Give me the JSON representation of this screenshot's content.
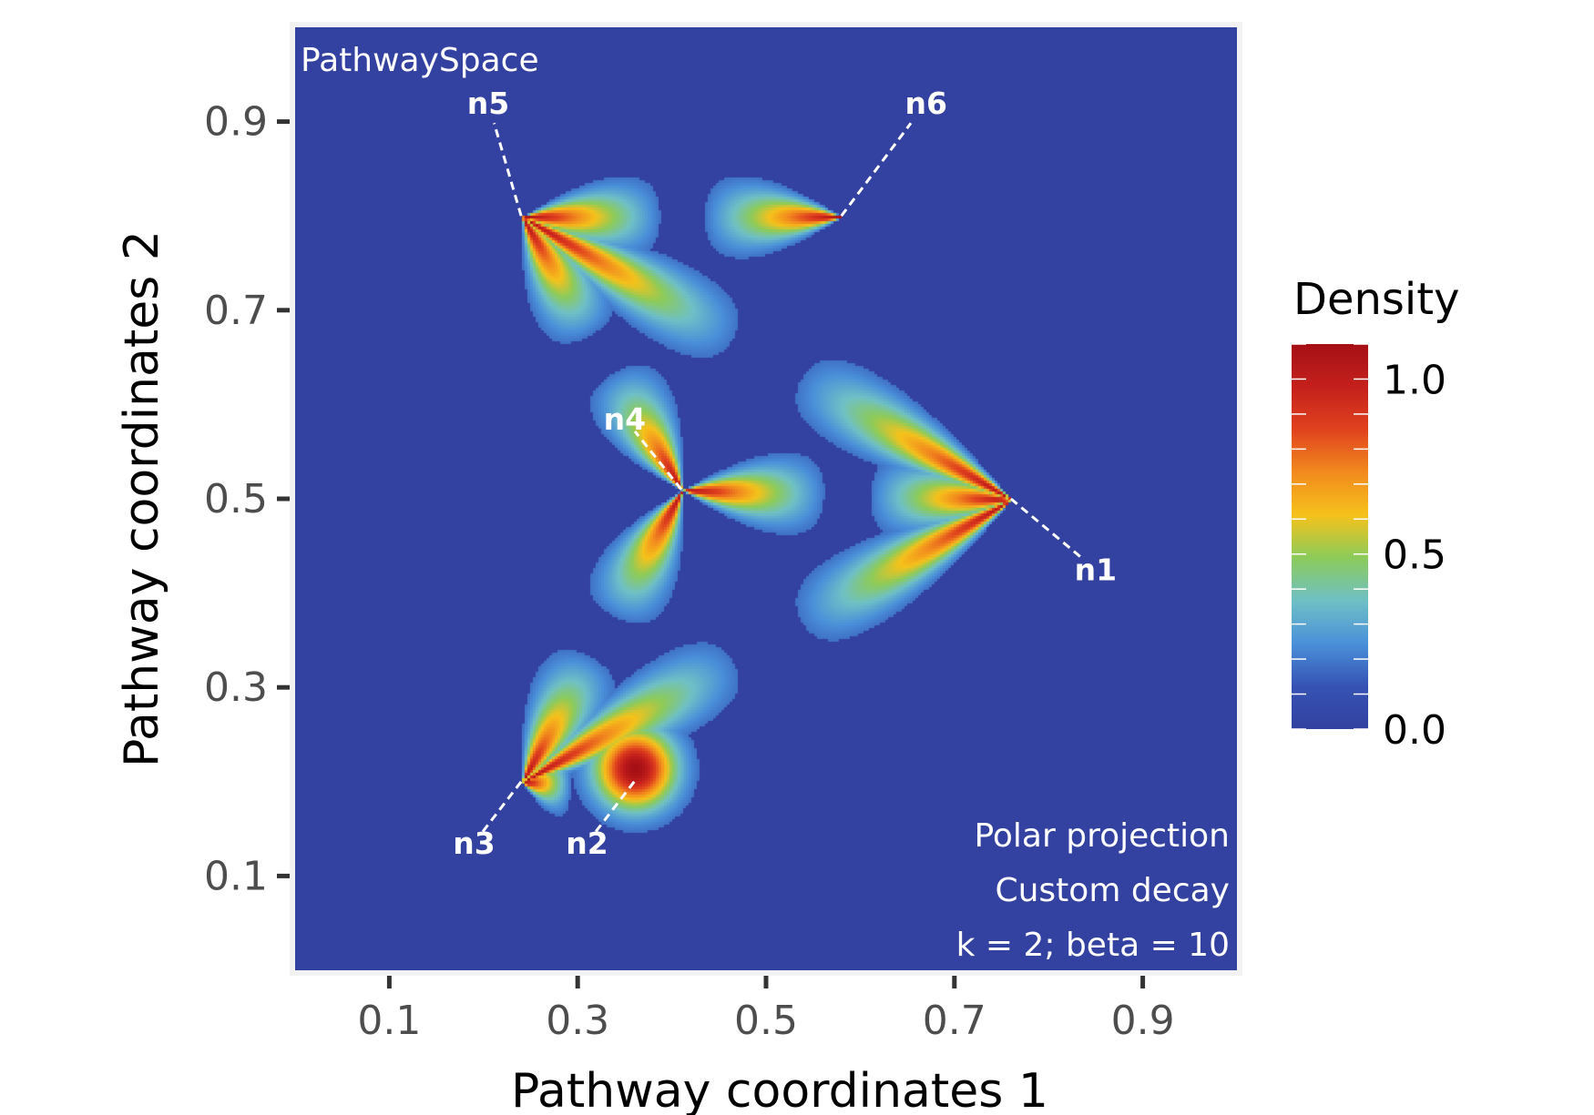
{
  "chart_data": {
    "type": "heatmap",
    "title": "",
    "xlabel": "Pathway coordinates 1",
    "ylabel": "Pathway coordinates 2",
    "xlim": [
      0,
      1
    ],
    "ylim": [
      0,
      1
    ],
    "x_ticks": [
      "0.1",
      "0.3",
      "0.5",
      "0.7",
      "0.9"
    ],
    "y_ticks": [
      "0.1",
      "0.3",
      "0.5",
      "0.7",
      "0.9"
    ],
    "x_tick_values": [
      0.1,
      0.3,
      0.5,
      0.7,
      0.9
    ],
    "y_tick_values": [
      0.1,
      0.3,
      0.5,
      0.7,
      0.9
    ],
    "grid": false,
    "panel_tag": "PathwaySpace",
    "annotations": [
      "Polar projection",
      "Custom decay",
      "k = 2; beta = 10"
    ],
    "legend": {
      "title": "Density",
      "placement": "right",
      "ticks": [
        "1.0",
        "0.5",
        "0.0"
      ],
      "tick_values": [
        1.0,
        0.5,
        0.0
      ],
      "range": [
        0,
        1.1
      ],
      "colors": [
        "#3341a0",
        "#3553b4",
        "#4a90d9",
        "#6fc0c6",
        "#8ccb5a",
        "#f5c21b",
        "#f28a1e",
        "#e0421e",
        "#c4201c",
        "#a50f15"
      ]
    },
    "nodes": [
      {
        "name": "n1",
        "x": 0.76,
        "y": 0.5
      },
      {
        "name": "n2",
        "x": 0.36,
        "y": 0.2
      },
      {
        "name": "n3",
        "x": 0.24,
        "y": 0.2
      },
      {
        "name": "n4",
        "x": 0.41,
        "y": 0.51
      },
      {
        "name": "n5",
        "x": 0.24,
        "y": 0.8
      },
      {
        "name": "n6",
        "x": 0.58,
        "y": 0.8
      }
    ],
    "edges": [
      [
        "n5",
        "n6"
      ],
      [
        "n5",
        "n1"
      ],
      [
        "n5",
        "n4"
      ],
      [
        "n4",
        "n1"
      ],
      [
        "n4",
        "n3"
      ],
      [
        "n3",
        "n1"
      ],
      [
        "n3",
        "n2"
      ]
    ],
    "background_color": "#3341a0"
  }
}
